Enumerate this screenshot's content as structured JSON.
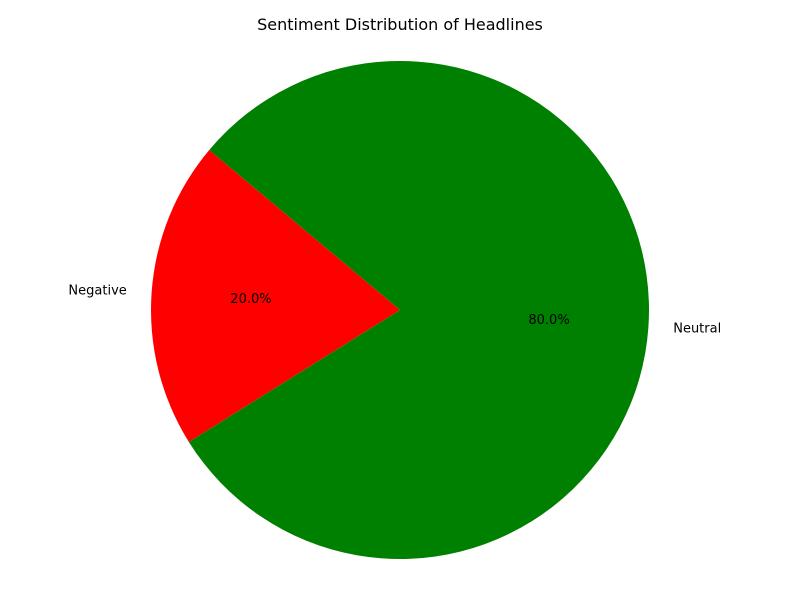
{
  "chart_data": {
    "type": "pie",
    "title": "Sentiment Distribution of Headlines",
    "slices": [
      {
        "label": "Negative",
        "value": 20.0,
        "pct_text": "20.0%",
        "color": "#ff0000"
      },
      {
        "label": "Neutral",
        "value": 80.0,
        "pct_text": "80.0%",
        "color": "#008000"
      }
    ],
    "start_angle_deg": 140,
    "direction": "counterclockwise",
    "legend": "none"
  }
}
